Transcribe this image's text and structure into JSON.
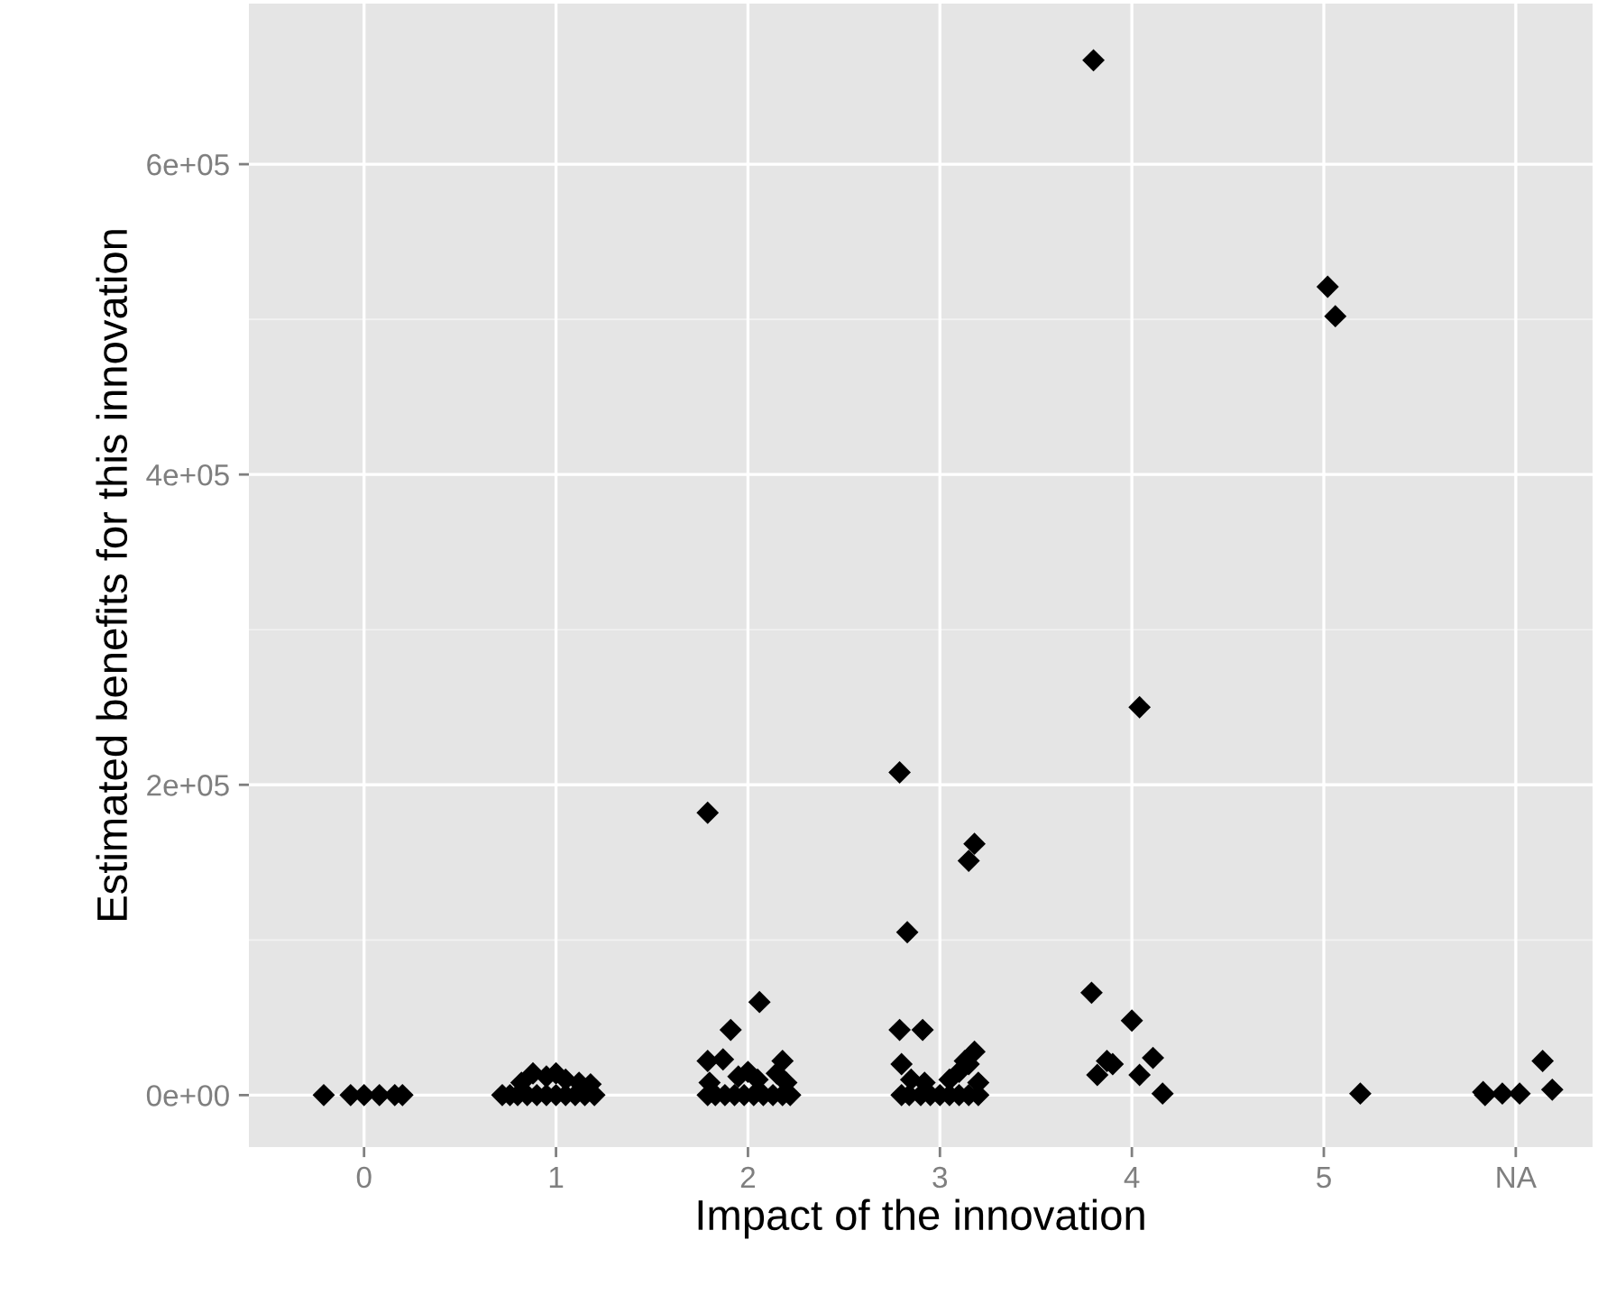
{
  "chart_data": {
    "type": "scatter",
    "xlabel": "Impact of the innovation",
    "ylabel": "Estimated benefits for this innovation",
    "series": [
      {
        "color": "#000000",
        "x": [
          -0.21,
          -0.07,
          0.0,
          0.08,
          0.16,
          0.2,
          0.72,
          0.76,
          0.8,
          0.85,
          0.9,
          0.95,
          1.0,
          1.05,
          1.1,
          1.15,
          1.2,
          0.82,
          0.88,
          0.95,
          1.0,
          1.05,
          1.12,
          1.18,
          1.79,
          1.83,
          1.88,
          1.93,
          1.98,
          2.03,
          2.08,
          2.13,
          2.18,
          2.22,
          1.8,
          1.95,
          2.05,
          2.15,
          2.2,
          1.79,
          1.87,
          2.0,
          2.18,
          1.91,
          2.06,
          1.79,
          2.8,
          2.84,
          2.9,
          2.95,
          3.0,
          3.05,
          3.1,
          3.15,
          3.2,
          2.8,
          2.85,
          2.92,
          3.05,
          3.1,
          3.15,
          3.18,
          3.13,
          3.2,
          2.79,
          2.91,
          2.83,
          2.79,
          3.15,
          3.18,
          3.8,
          3.79,
          4.0,
          3.87,
          3.9,
          3.82,
          4.11,
          4.04,
          4.16,
          4.04,
          5.02,
          5.06,
          5.19,
          5.83,
          5.84,
          5.93,
          6.02,
          6.14,
          6.19
        ],
        "values": [
          0,
          0,
          0,
          0,
          0,
          0,
          0,
          0,
          0,
          0,
          0,
          0,
          0,
          0,
          0,
          0,
          0,
          8000,
          14000,
          12000,
          14000,
          10000,
          8000,
          7000,
          0,
          0,
          0,
          0,
          0,
          0,
          0,
          0,
          0,
          0,
          8000,
          12000,
          10000,
          14000,
          8000,
          22000,
          23000,
          15000,
          22000,
          42000,
          60000,
          182000,
          0,
          0,
          0,
          0,
          0,
          0,
          0,
          0,
          0,
          20000,
          10000,
          8000,
          10000,
          15000,
          20000,
          28000,
          22000,
          8000,
          42000,
          42000,
          105000,
          208000,
          151000,
          162000,
          667000,
          66000,
          48000,
          22000,
          20000,
          13000,
          24000,
          13000,
          1000,
          250000,
          521000,
          502000,
          1000,
          2000,
          0,
          1000,
          1000,
          22000,
          3500
        ]
      }
    ],
    "xlim": [
      -0.6,
      6.4
    ],
    "xticks": [
      0,
      1,
      2,
      3,
      4,
      5,
      {
        "value": 6,
        "label": "NA"
      }
    ],
    "ylim": [
      -33500,
      703500
    ],
    "yticks": [
      {
        "value": 0,
        "label": "0e+00"
      },
      {
        "value": 100000,
        "label": null
      },
      {
        "value": 200000,
        "label": "2e+05"
      },
      {
        "value": 300000,
        "label": null
      },
      {
        "value": 400000,
        "label": "4e+05"
      },
      {
        "value": 500000,
        "label": null
      },
      {
        "value": 600000,
        "label": "6e+05"
      }
    ],
    "grid": true,
    "marker": "diamond"
  }
}
